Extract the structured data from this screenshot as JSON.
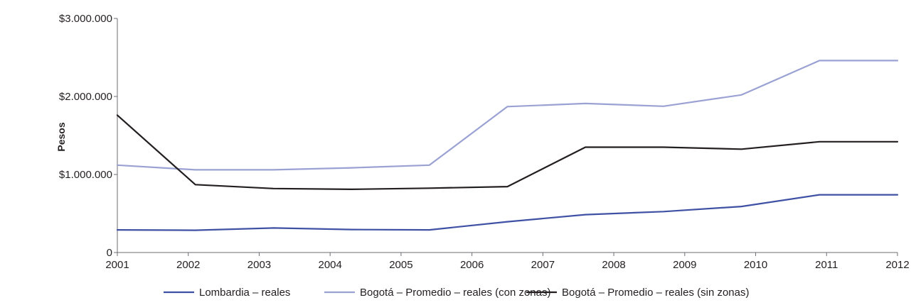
{
  "chart_data": {
    "type": "line",
    "title": "",
    "xlabel": "",
    "ylabel": "Pesos",
    "ylim": [
      0,
      3000000
    ],
    "grid": false,
    "legend_position": "bottom",
    "categories": [
      "2001",
      "2002",
      "2003",
      "2004",
      "2005",
      "2006",
      "2007",
      "2008",
      "2009",
      "2010",
      "2011",
      "2012"
    ],
    "y_ticks": [
      {
        "value": 0,
        "label": "0"
      },
      {
        "value": 1000000,
        "label": "$1.000.000"
      },
      {
        "value": 2000000,
        "label": "$2.000.000"
      },
      {
        "value": 3000000,
        "label": "$3.000.000"
      }
    ],
    "series": [
      {
        "name": "Lombardia – reales",
        "color": "#3f51a4",
        "x": [
          2001,
          2002.1,
          2003.2,
          2004.3,
          2005.4,
          2006.5,
          2007.6,
          2008.7,
          2009.8,
          2010.9,
          2012
        ],
        "values": [
          290000,
          285000,
          315000,
          295000,
          290000,
          395000,
          485000,
          525000,
          590000,
          740000,
          740000
        ]
      },
      {
        "name": "Bogotá – Promedio – reales (con zonas)",
        "color": "#9aa1d3",
        "x": [
          2001,
          2002.1,
          2003.2,
          2004.3,
          2005.4,
          2006.5,
          2007.6,
          2008.7,
          2009.8,
          2010.9,
          2012
        ],
        "values": [
          1120000,
          1060000,
          1060000,
          1085000,
          1120000,
          1870000,
          1910000,
          1875000,
          2020000,
          2460000,
          2460000
        ]
      },
      {
        "name": "Bogotá – Promedio – reales (sin zonas)",
        "color": "#231f20",
        "x": [
          2001,
          2002.1,
          2003.2,
          2004.3,
          2005.4,
          2006.5,
          2007.6,
          2008.7,
          2009.8,
          2010.9,
          2012
        ],
        "values": [
          1760000,
          870000,
          820000,
          810000,
          825000,
          845000,
          1350000,
          1350000,
          1325000,
          1420000,
          1420000
        ]
      }
    ]
  }
}
